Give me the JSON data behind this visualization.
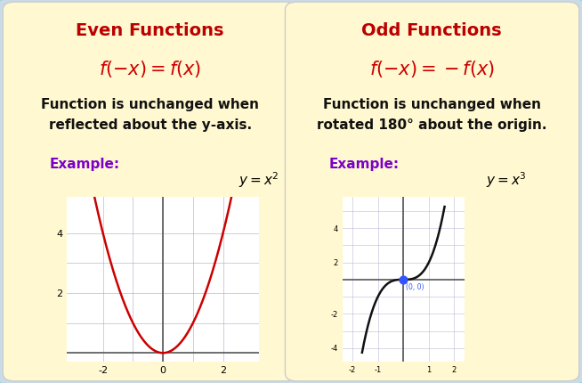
{
  "outer_border_color": "#A0C4D8",
  "outer_bg": "#C8DCE8",
  "panel_bg": "#FFF8D0",
  "panel_edge": "#CCCCCC",
  "title_even": "Even Functions",
  "title_odd": "Odd Functions",
  "title_color": "#BB0000",
  "title_fontsize": 14,
  "formula_even": "$f(-x) = f(x)$",
  "formula_odd": "$f(-x) = -f(x)$",
  "formula_color": "#CC0000",
  "formula_fontsize": 15,
  "desc_even": "Function is unchanged when\nreflected about the y-axis.",
  "desc_odd": "Function is unchanged when\nrotated 180° about the origin.",
  "desc_fontsize": 11,
  "desc_color": "#111111",
  "example_label": "Example:",
  "example_color": "#7B00CC",
  "example_fontsize": 11,
  "eq_even": "$y = x^2$",
  "eq_odd": "$y = x^3$",
  "eq_fontsize": 10,
  "curve_even_color": "#CC0000",
  "curve_odd_color": "#111111",
  "grid_color": "#AAAACC",
  "dot_color": "#3355FF",
  "dot_size": 40
}
